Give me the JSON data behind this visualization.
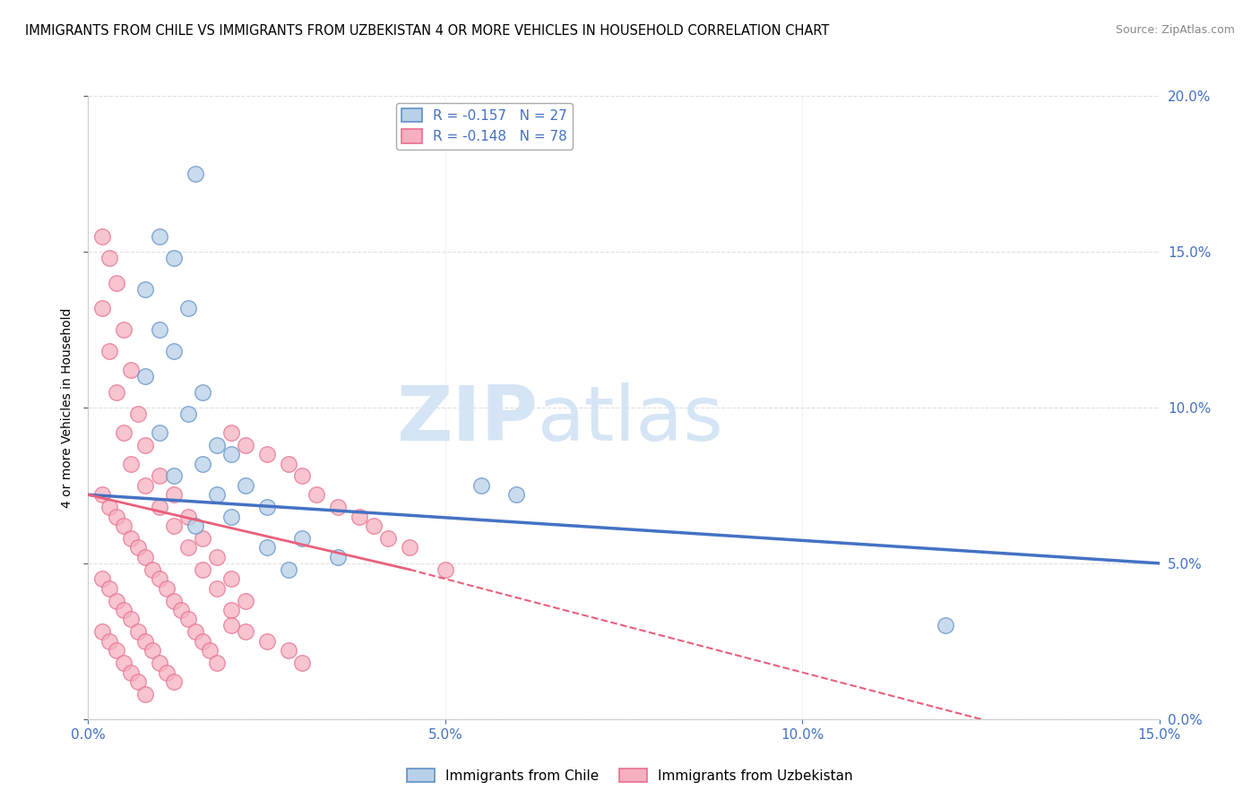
{
  "title": "IMMIGRANTS FROM CHILE VS IMMIGRANTS FROM UZBEKISTAN 4 OR MORE VEHICLES IN HOUSEHOLD CORRELATION CHART",
  "source": "Source: ZipAtlas.com",
  "ylabel_label": "4 or more Vehicles in Household",
  "legend_chile": "Immigrants from Chile",
  "legend_uzbekistan": "Immigrants from Uzbekistan",
  "chile_R": -0.157,
  "chile_N": 27,
  "uzbekistan_R": -0.148,
  "uzbekistan_N": 78,
  "chile_color": "#b8d0e8",
  "uzbekistan_color": "#f5b0c0",
  "chile_edge_color": "#6090c8",
  "uzbekistan_edge_color": "#e87090",
  "chile_line_color": "#4472c4",
  "uzbekistan_line_color": "#e8607a",
  "watermark_zip": "ZIP",
  "watermark_atlas": "atlas",
  "watermark_color": "#d5e5f5",
  "xlim": [
    0.0,
    0.15
  ],
  "ylim": [
    0.0,
    0.2
  ],
  "chile_points": [
    [
      0.015,
      0.175
    ],
    [
      0.01,
      0.155
    ],
    [
      0.012,
      0.148
    ],
    [
      0.008,
      0.138
    ],
    [
      0.014,
      0.132
    ],
    [
      0.01,
      0.125
    ],
    [
      0.012,
      0.118
    ],
    [
      0.008,
      0.11
    ],
    [
      0.016,
      0.105
    ],
    [
      0.014,
      0.098
    ],
    [
      0.01,
      0.092
    ],
    [
      0.018,
      0.088
    ],
    [
      0.02,
      0.085
    ],
    [
      0.016,
      0.082
    ],
    [
      0.012,
      0.078
    ],
    [
      0.022,
      0.075
    ],
    [
      0.018,
      0.072
    ],
    [
      0.025,
      0.068
    ],
    [
      0.02,
      0.065
    ],
    [
      0.015,
      0.062
    ],
    [
      0.03,
      0.058
    ],
    [
      0.025,
      0.055
    ],
    [
      0.035,
      0.052
    ],
    [
      0.028,
      0.048
    ],
    [
      0.055,
      0.075
    ],
    [
      0.06,
      0.072
    ],
    [
      0.12,
      0.03
    ]
  ],
  "uzbekistan_points": [
    [
      0.002,
      0.155
    ],
    [
      0.003,
      0.148
    ],
    [
      0.004,
      0.14
    ],
    [
      0.002,
      0.132
    ],
    [
      0.005,
      0.125
    ],
    [
      0.003,
      0.118
    ],
    [
      0.006,
      0.112
    ],
    [
      0.004,
      0.105
    ],
    [
      0.007,
      0.098
    ],
    [
      0.005,
      0.092
    ],
    [
      0.008,
      0.088
    ],
    [
      0.006,
      0.082
    ],
    [
      0.01,
      0.078
    ],
    [
      0.008,
      0.075
    ],
    [
      0.012,
      0.072
    ],
    [
      0.01,
      0.068
    ],
    [
      0.014,
      0.065
    ],
    [
      0.012,
      0.062
    ],
    [
      0.016,
      0.058
    ],
    [
      0.014,
      0.055
    ],
    [
      0.018,
      0.052
    ],
    [
      0.016,
      0.048
    ],
    [
      0.02,
      0.045
    ],
    [
      0.018,
      0.042
    ],
    [
      0.022,
      0.038
    ],
    [
      0.02,
      0.035
    ],
    [
      0.002,
      0.072
    ],
    [
      0.003,
      0.068
    ],
    [
      0.004,
      0.065
    ],
    [
      0.005,
      0.062
    ],
    [
      0.006,
      0.058
    ],
    [
      0.007,
      0.055
    ],
    [
      0.008,
      0.052
    ],
    [
      0.009,
      0.048
    ],
    [
      0.01,
      0.045
    ],
    [
      0.011,
      0.042
    ],
    [
      0.012,
      0.038
    ],
    [
      0.013,
      0.035
    ],
    [
      0.014,
      0.032
    ],
    [
      0.015,
      0.028
    ],
    [
      0.016,
      0.025
    ],
    [
      0.017,
      0.022
    ],
    [
      0.018,
      0.018
    ],
    [
      0.002,
      0.028
    ],
    [
      0.003,
      0.025
    ],
    [
      0.004,
      0.022
    ],
    [
      0.005,
      0.018
    ],
    [
      0.006,
      0.015
    ],
    [
      0.007,
      0.012
    ],
    [
      0.008,
      0.008
    ],
    [
      0.002,
      0.045
    ],
    [
      0.003,
      0.042
    ],
    [
      0.004,
      0.038
    ],
    [
      0.005,
      0.035
    ],
    [
      0.006,
      0.032
    ],
    [
      0.007,
      0.028
    ],
    [
      0.008,
      0.025
    ],
    [
      0.009,
      0.022
    ],
    [
      0.01,
      0.018
    ],
    [
      0.011,
      0.015
    ],
    [
      0.012,
      0.012
    ],
    [
      0.02,
      0.03
    ],
    [
      0.022,
      0.028
    ],
    [
      0.025,
      0.025
    ],
    [
      0.028,
      0.022
    ],
    [
      0.03,
      0.018
    ],
    [
      0.02,
      0.092
    ],
    [
      0.022,
      0.088
    ],
    [
      0.025,
      0.085
    ],
    [
      0.028,
      0.082
    ],
    [
      0.03,
      0.078
    ],
    [
      0.032,
      0.072
    ],
    [
      0.035,
      0.068
    ],
    [
      0.038,
      0.065
    ],
    [
      0.04,
      0.062
    ],
    [
      0.042,
      0.058
    ],
    [
      0.045,
      0.055
    ],
    [
      0.05,
      0.048
    ]
  ]
}
